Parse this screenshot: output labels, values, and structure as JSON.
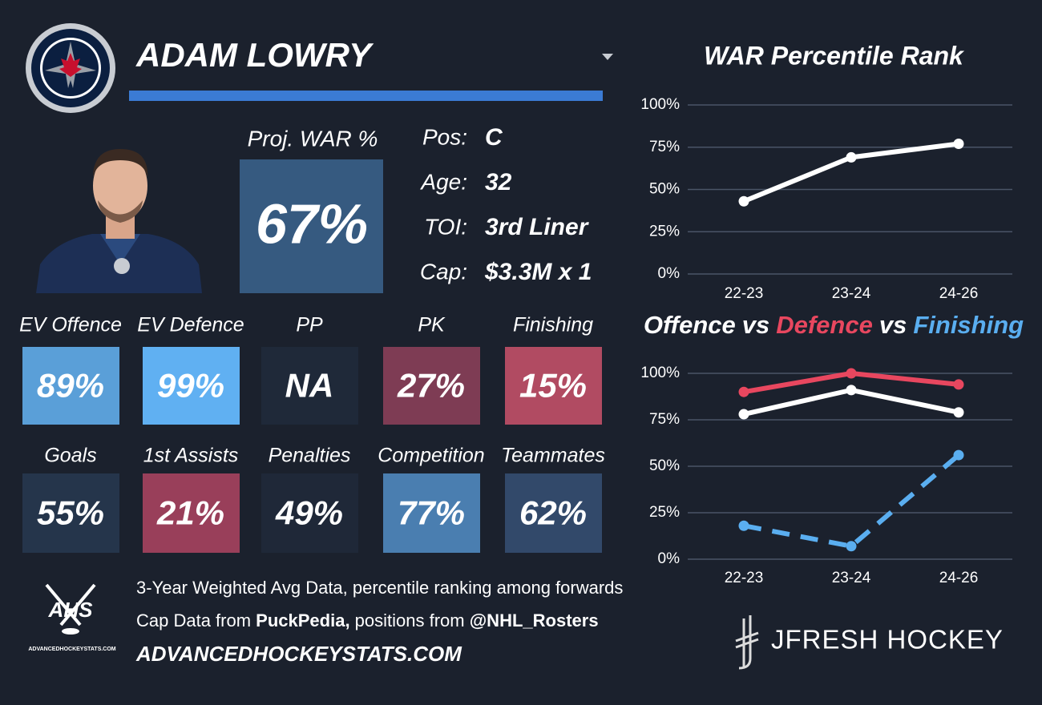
{
  "header": {
    "player_name": "ADAM LOWRY"
  },
  "projection": {
    "label": "Proj. WAR %",
    "value": "67%",
    "color": "#365a80"
  },
  "info": [
    {
      "label": "Pos:",
      "value": "C"
    },
    {
      "label": "Age:",
      "value": "32"
    },
    {
      "label": "TOI:",
      "value": "3rd Liner"
    },
    {
      "label": "Cap:",
      "value": "$3.3M x 1"
    }
  ],
  "tiles": [
    [
      {
        "label": "EV Offence",
        "value": "89%",
        "color": "#5a9fd8"
      },
      {
        "label": "EV Defence",
        "value": "99%",
        "color": "#60b0f2"
      },
      {
        "label": "PP",
        "value": "NA",
        "color": "#1f2939"
      },
      {
        "label": "PK",
        "value": "27%",
        "color": "#7e3c54"
      },
      {
        "label": "Finishing",
        "value": "15%",
        "color": "#b14b62"
      }
    ],
    [
      {
        "label": "Goals",
        "value": "55%",
        "color": "#25354b"
      },
      {
        "label": "1st Assists",
        "value": "21%",
        "color": "#993f5a"
      },
      {
        "label": "Penalties",
        "value": "49%",
        "color": "#1f2838"
      },
      {
        "label": "Competition",
        "value": "77%",
        "color": "#4a7eb0"
      },
      {
        "label": "Teammates",
        "value": "62%",
        "color": "#32496a"
      }
    ]
  ],
  "footer": {
    "lines": [
      [
        {
          "text": "3-Year Weighted Avg Data, percentile ranking among forwards",
          "bold": false
        }
      ],
      [
        {
          "text": "Cap Data from ",
          "bold": false
        },
        {
          "text": "PuckPedia,",
          "bold": true
        },
        {
          "text": " positions from ",
          "bold": false
        },
        {
          "text": "@NHL_Rosters",
          "bold": true
        }
      ]
    ],
    "site": "ADVANCEDHOCKEYSTATS.COM",
    "ahs_logo": {
      "mark": "AHS",
      "caption": "ADVANCEDHOCKEYSTATS.COM"
    },
    "brand": "JFRESH HOCKEY"
  },
  "chart_data": [
    {
      "type": "line",
      "title": "WAR Percentile Rank",
      "categories": [
        "22-23",
        "23-24",
        "24-26"
      ],
      "series": [
        {
          "color": "#ffffff",
          "dash": false,
          "values": [
            43,
            69,
            77
          ]
        }
      ],
      "ylim": [
        0,
        100
      ],
      "yticks": [
        {
          "value": 0,
          "label": "0%"
        },
        {
          "value": 25,
          "label": "25%"
        },
        {
          "value": 50,
          "label": "50%"
        },
        {
          "value": 75,
          "label": "75%"
        },
        {
          "value": 100,
          "label": "100%"
        }
      ],
      "grid": true
    },
    {
      "type": "line",
      "title_separator": "vs",
      "categories": [
        "22-23",
        "23-24",
        "24-26"
      ],
      "series": [
        {
          "name": "Offence",
          "color": "#ffffff",
          "dash": false,
          "values": [
            78,
            91,
            79
          ]
        },
        {
          "name": "Defence",
          "color": "#e8475f",
          "dash": false,
          "values": [
            90,
            100,
            94
          ]
        },
        {
          "name": "Finishing",
          "color": "#5aaef0",
          "dash": true,
          "values": [
            18,
            7,
            56
          ]
        }
      ],
      "ylim": [
        0,
        100
      ],
      "yticks": [
        {
          "value": 0,
          "label": "0%"
        },
        {
          "value": 25,
          "label": "25%"
        },
        {
          "value": 50,
          "label": "50%"
        },
        {
          "value": 75,
          "label": "75%"
        },
        {
          "value": 100,
          "label": "100%"
        }
      ],
      "grid": true
    }
  ]
}
